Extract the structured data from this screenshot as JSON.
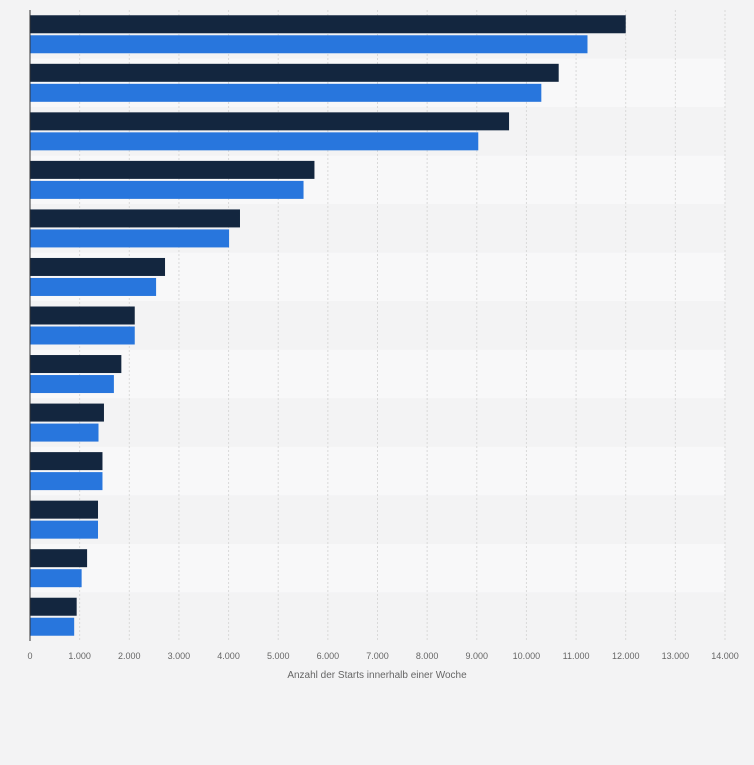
{
  "chart_data": {
    "type": "bar",
    "orientation": "horizontal",
    "categories": [
      "",
      "",
      "",
      "",
      "",
      "",
      "",
      "",
      "",
      "",
      "",
      "",
      ""
    ],
    "series": [
      {
        "values": [
          12000,
          10650,
          9650,
          5730,
          4230,
          2720,
          2110,
          1840,
          1490,
          1460,
          1370,
          1150,
          940
        ]
      },
      {
        "values": [
          11230,
          10300,
          9030,
          5510,
          4010,
          2540,
          2110,
          1690,
          1380,
          1460,
          1370,
          1040,
          890
        ]
      }
    ],
    "colors": [
      "#13263f",
      "#2876dd"
    ],
    "xlim": [
      0,
      14000
    ],
    "xticks": [
      0,
      1000,
      2000,
      3000,
      4000,
      5000,
      6000,
      7000,
      8000,
      9000,
      10000,
      11000,
      12000,
      13000,
      14000
    ],
    "xtick_labels": [
      "0",
      "1.000",
      "2.000",
      "3.000",
      "4.000",
      "5.000",
      "6.000",
      "7.000",
      "8.000",
      "9.000",
      "10.000",
      "11.000",
      "12.000",
      "13.000",
      "14.000"
    ],
    "xlabel": "Anzahl der Starts innerhalb einer Woche",
    "ylabel": "",
    "grid": true,
    "title": ""
  }
}
